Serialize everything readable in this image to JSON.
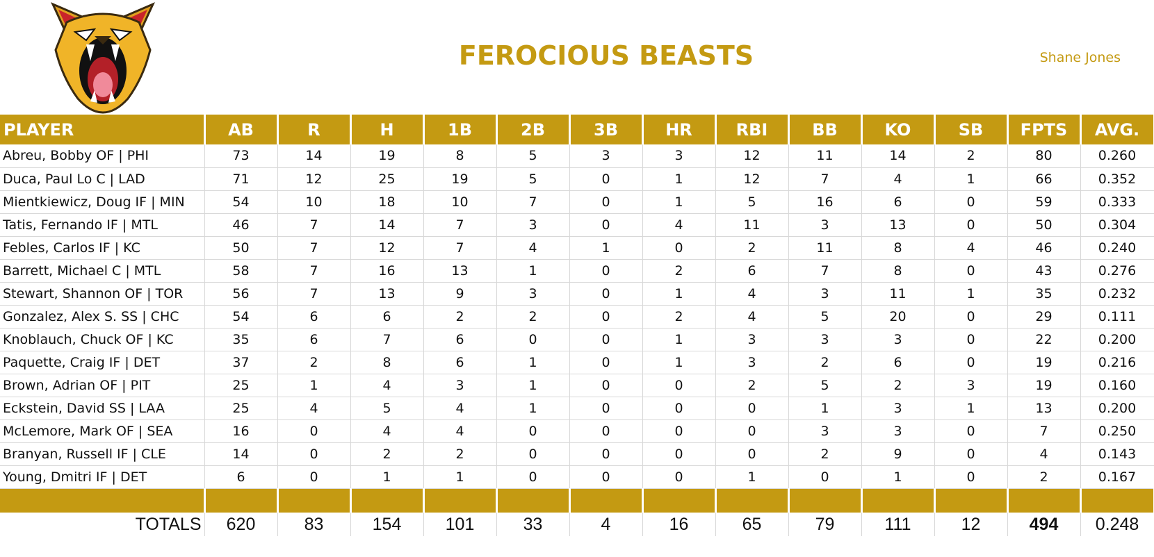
{
  "header": {
    "team_name": "FEROCIOUS BEASTS",
    "owner": "Shane Jones",
    "logo_icon": "roaring-cougar-logo"
  },
  "colors": {
    "accent": "#c49a12",
    "header_text": "#ffffff"
  },
  "table": {
    "columns": [
      "PLAYER",
      "AB",
      "R",
      "H",
      "1B",
      "2B",
      "3B",
      "HR",
      "RBI",
      "BB",
      "KO",
      "SB",
      "FPTS",
      "AVG."
    ],
    "rows": [
      [
        "Abreu, Bobby OF | PHI",
        "73",
        "14",
        "19",
        "8",
        "5",
        "3",
        "3",
        "12",
        "11",
        "14",
        "2",
        "80",
        "0.260"
      ],
      [
        "Duca, Paul Lo C | LAD",
        "71",
        "12",
        "25",
        "19",
        "5",
        "0",
        "1",
        "12",
        "7",
        "4",
        "1",
        "66",
        "0.352"
      ],
      [
        "Mientkiewicz, Doug IF | MIN",
        "54",
        "10",
        "18",
        "10",
        "7",
        "0",
        "1",
        "5",
        "16",
        "6",
        "0",
        "59",
        "0.333"
      ],
      [
        "Tatis, Fernando IF | MTL",
        "46",
        "7",
        "14",
        "7",
        "3",
        "0",
        "4",
        "11",
        "3",
        "13",
        "0",
        "50",
        "0.304"
      ],
      [
        "Febles, Carlos IF | KC",
        "50",
        "7",
        "12",
        "7",
        "4",
        "1",
        "0",
        "2",
        "11",
        "8",
        "4",
        "46",
        "0.240"
      ],
      [
        "Barrett, Michael C | MTL",
        "58",
        "7",
        "16",
        "13",
        "1",
        "0",
        "2",
        "6",
        "7",
        "8",
        "0",
        "43",
        "0.276"
      ],
      [
        "Stewart, Shannon OF | TOR",
        "56",
        "7",
        "13",
        "9",
        "3",
        "0",
        "1",
        "4",
        "3",
        "11",
        "1",
        "35",
        "0.232"
      ],
      [
        "Gonzalez, Alex S. SS | CHC",
        "54",
        "6",
        "6",
        "2",
        "2",
        "0",
        "2",
        "4",
        "5",
        "20",
        "0",
        "29",
        "0.111"
      ],
      [
        "Knoblauch, Chuck OF | KC",
        "35",
        "6",
        "7",
        "6",
        "0",
        "0",
        "1",
        "3",
        "3",
        "3",
        "0",
        "22",
        "0.200"
      ],
      [
        "Paquette, Craig IF | DET",
        "37",
        "2",
        "8",
        "6",
        "1",
        "0",
        "1",
        "3",
        "2",
        "6",
        "0",
        "19",
        "0.216"
      ],
      [
        "Brown, Adrian OF | PIT",
        "25",
        "1",
        "4",
        "3",
        "1",
        "0",
        "0",
        "2",
        "5",
        "2",
        "3",
        "19",
        "0.160"
      ],
      [
        "Eckstein, David SS | LAA",
        "25",
        "4",
        "5",
        "4",
        "1",
        "0",
        "0",
        "0",
        "1",
        "3",
        "1",
        "13",
        "0.200"
      ],
      [
        "McLemore, Mark OF | SEA",
        "16",
        "0",
        "4",
        "4",
        "0",
        "0",
        "0",
        "0",
        "3",
        "3",
        "0",
        "7",
        "0.250"
      ],
      [
        "Branyan, Russell IF | CLE",
        "14",
        "0",
        "2",
        "2",
        "0",
        "0",
        "0",
        "0",
        "2",
        "9",
        "0",
        "4",
        "0.143"
      ],
      [
        "Young, Dmitri IF | DET",
        "6",
        "0",
        "1",
        "1",
        "0",
        "0",
        "0",
        "1",
        "0",
        "1",
        "0",
        "2",
        "0.167"
      ]
    ],
    "totals": [
      "TOTALS",
      "620",
      "83",
      "154",
      "101",
      "33",
      "4",
      "16",
      "65",
      "79",
      "111",
      "12",
      "494",
      "0.248"
    ]
  }
}
